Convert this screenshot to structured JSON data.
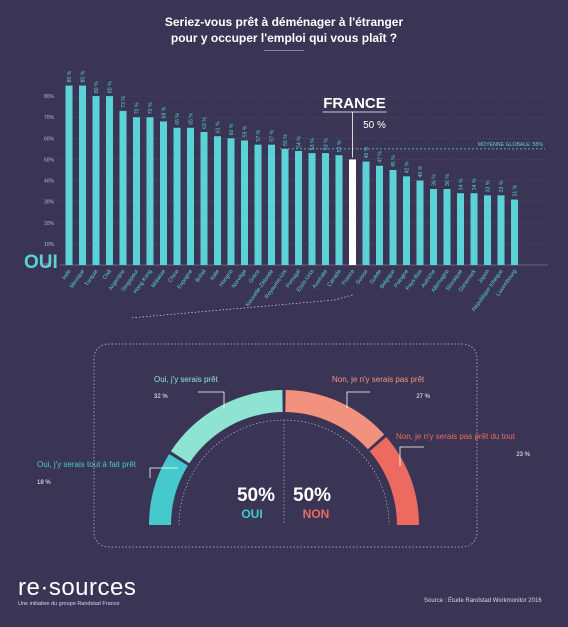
{
  "title_line1": "Seriez-vous prêt à déménager à l'étranger",
  "title_line2": "pour y occuper l'emploi qui vous plaît ?",
  "colors": {
    "background": "#3b3555",
    "bars": "#5bd2d6",
    "highlight": "#ffffff",
    "oui_light": "#8fe3d3",
    "oui_dark": "#46c9cc",
    "non_light": "#f3917f",
    "non_dark": "#ec6a5f",
    "axis": "#6e6890"
  },
  "chart_data": [
    {
      "type": "bar",
      "ylim": [
        0,
        90
      ],
      "y_ticks": [
        "0%",
        "10%",
        "20%",
        "30%",
        "40%",
        "50%",
        "60%",
        "70%",
        "80%"
      ],
      "series_label": "OUI",
      "categories": [
        "Inde",
        "Mexique",
        "Turquie",
        "Chili",
        "Argentine",
        "Singapour",
        "Hong Kong",
        "Malaisie",
        "Chine",
        "Espagne",
        "Brésil",
        "Italie",
        "Hongrie",
        "Norvège",
        "Grèce",
        "Nouvelle-Zélande",
        "Royaume-Uni",
        "Portugal",
        "Etats-Unis",
        "Australie",
        "Canada",
        "France",
        "Suisse",
        "Suède",
        "Belgique",
        "Pologne",
        "Pays-Bas",
        "Autriche",
        "Allemagne",
        "Slovaquie",
        "Danemark",
        "Japon",
        "République tchèque",
        "Luxembourg"
      ],
      "values": [
        85,
        85,
        80,
        80,
        73,
        70,
        70,
        68,
        65,
        65,
        63,
        61,
        60,
        59,
        57,
        57,
        55,
        54,
        53,
        53,
        52,
        50,
        49,
        47,
        45,
        42,
        40,
        36,
        36,
        34,
        34,
        33,
        33,
        31
      ],
      "value_labels": [
        "85 %",
        "85 %",
        "80 %",
        "80 %",
        "73 %",
        "70 %",
        "70 %",
        "68 %",
        "65 %",
        "65 %",
        "63 %",
        "61 %",
        "60 %",
        "59 %",
        "57 %",
        "57 %",
        "55 %",
        "54 %",
        "53 %",
        "53 %",
        "52 %",
        "",
        "49 %",
        "47 %",
        "45 %",
        "42 %",
        "40 %",
        "36 %",
        "36 %",
        "34 %",
        "34 %",
        "33 %",
        "33 %",
        "31 %"
      ],
      "highlight": {
        "category": "France",
        "label": "FRANCE",
        "value_label": "50 %"
      },
      "reference_line": {
        "value": 55,
        "label": "MOYENNE GLOBALE: 55%"
      }
    },
    {
      "type": "pie",
      "segments": [
        {
          "label": "Oui, j'y serais tout à fait prêt",
          "value_label": "18 %",
          "value": 18,
          "color": "#46c9cc"
        },
        {
          "label": "Oui, j'y serais prêt",
          "value_label": "32 %",
          "value": 32,
          "color": "#8fe3d3"
        },
        {
          "label": "Non, je n'y serais pas prêt",
          "value_label": "27 %",
          "value": 27,
          "color": "#f3917f"
        },
        {
          "label": "Non, je n'y serais pas prêt du tout",
          "value_label": "23 %",
          "value": 23,
          "color": "#ec6a5f"
        }
      ],
      "total_oui": {
        "value_label": "50%",
        "label": "OUI"
      },
      "total_non": {
        "value_label": "50%",
        "label": "NON"
      }
    }
  ],
  "brand": {
    "name": "re·sources",
    "tagline": "Une initiative du groupe Randstad France"
  },
  "source": "Source : Étude Randstad Workmonitor 2016"
}
